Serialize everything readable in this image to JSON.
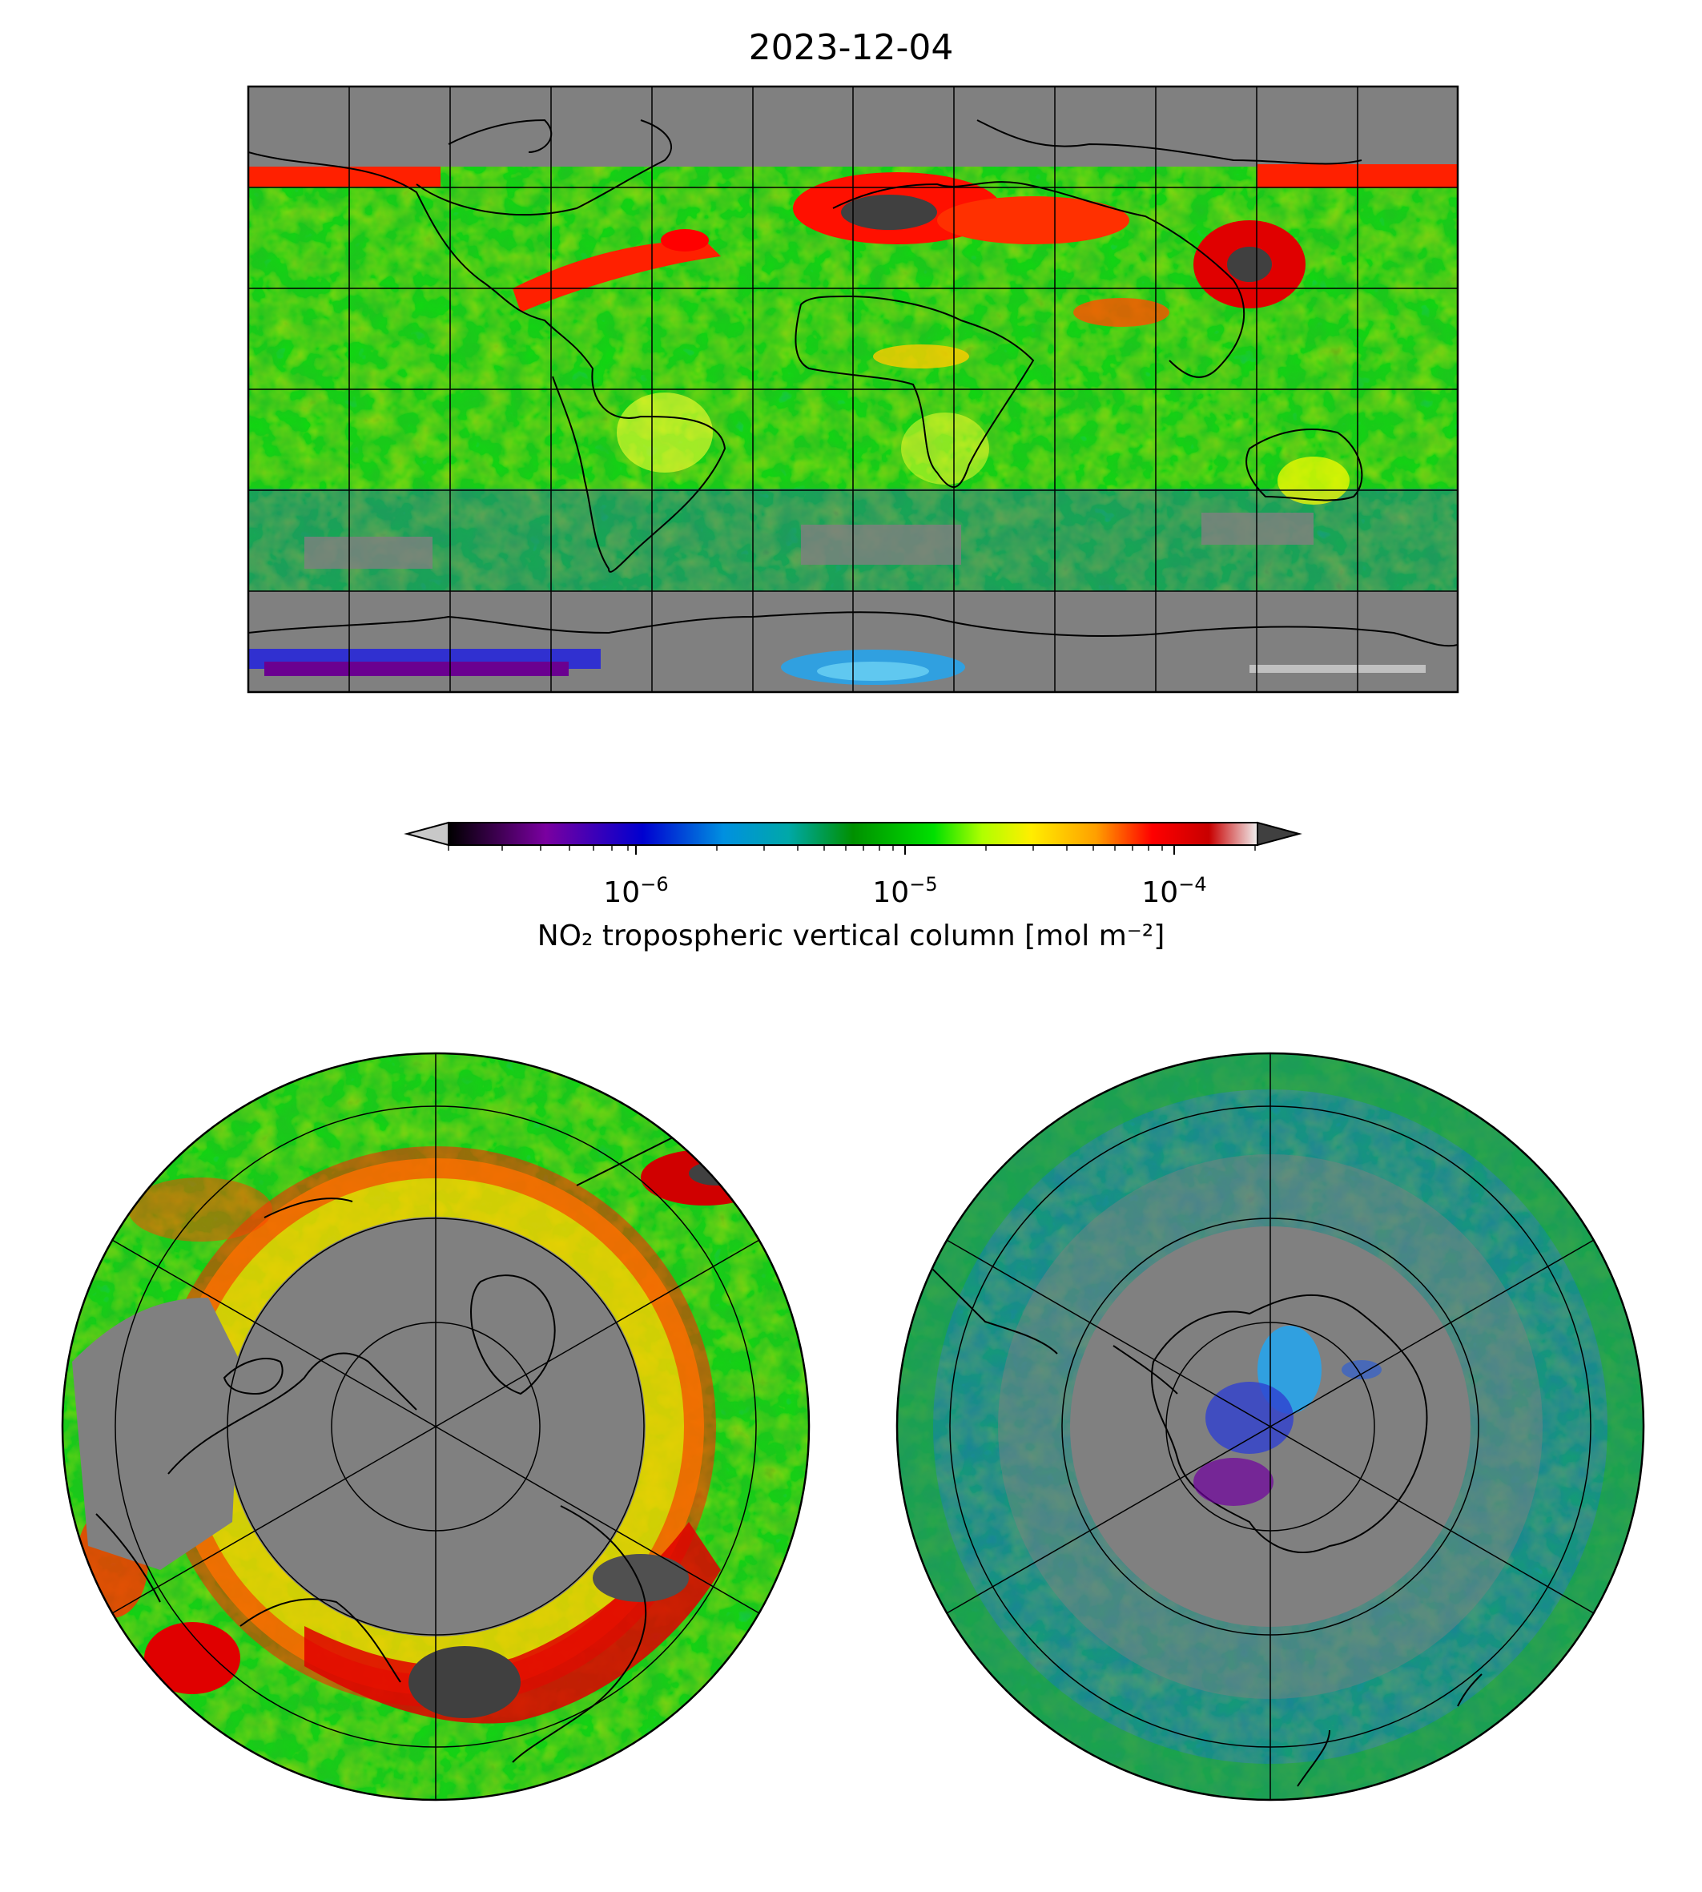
{
  "title": "2023-12-04",
  "colorbar": {
    "label": "NO₂ tropospheric vertical column [mol m⁻²]",
    "scale": "log",
    "extend": "both",
    "range": [
      2e-07,
      0.0002
    ],
    "ticks": [
      {
        "base": "10",
        "exp": "−6",
        "value": 1e-06
      },
      {
        "base": "10",
        "exp": "−5",
        "value": 1e-05
      },
      {
        "base": "10",
        "exp": "−4",
        "value": 0.0001
      }
    ],
    "colors": [
      "#d0d0d0",
      "#000000",
      "#7a00a0",
      "#0000d0",
      "#0090e0",
      "#00a8a8",
      "#009000",
      "#00e000",
      "#b0ff00",
      "#ffee00",
      "#ffa000",
      "#ff0000",
      "#c80000",
      "#f0f0f0",
      "#404040"
    ]
  },
  "panels": [
    {
      "name": "global map",
      "projection": "plate carree",
      "gridlines": true
    },
    {
      "name": "northern hemisphere",
      "projection": "north polar stereographic",
      "gridlines": true
    },
    {
      "name": "southern hemisphere",
      "projection": "south polar stereographic",
      "gridlines": true
    }
  ],
  "colors": {
    "no_data": "#808080",
    "coast": "#000000"
  }
}
